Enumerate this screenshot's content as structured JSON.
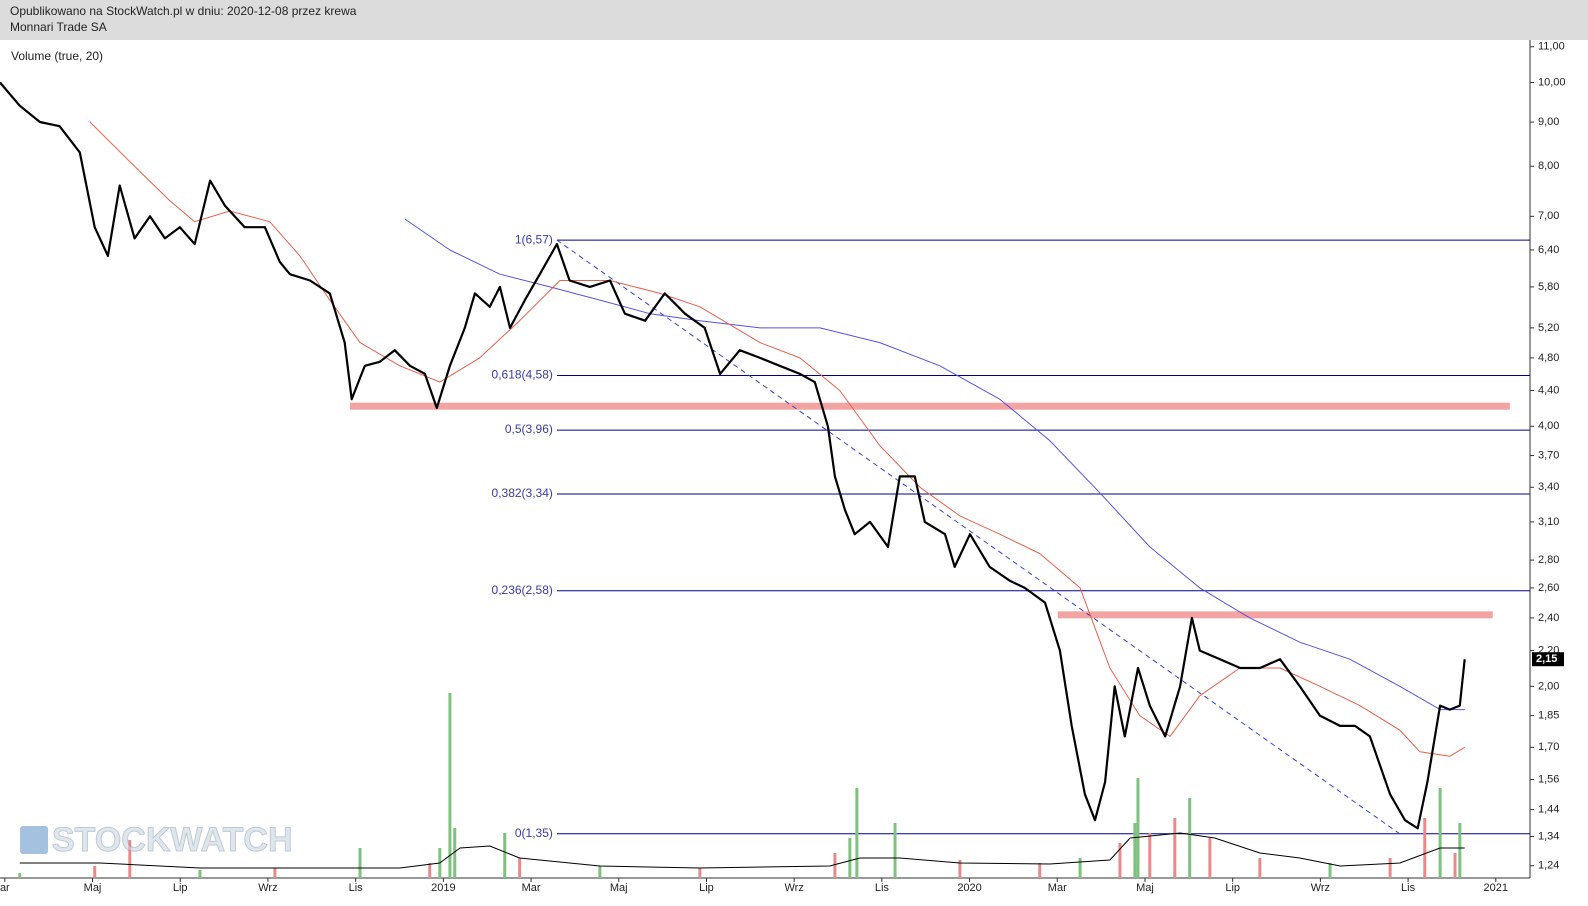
{
  "header": {
    "published": "Opublikowano na StockWatch.pl w dniu: 2020-12-08 przez krewa",
    "company": "Monnari Trade SA"
  },
  "watermark": "STOCKWATCH",
  "chart_data": {
    "type": "line",
    "subtitle": "Volume (true, 20)",
    "log_y": true,
    "xlim": [
      -0.11,
      34.78
    ],
    "ylim": [
      1.2,
      11.2
    ],
    "y2lim": [
      0,
      200
    ],
    "xticks": [
      {
        "value": 0,
        "label": "ar"
      },
      {
        "value": 2,
        "label": "Maj"
      },
      {
        "value": 4,
        "label": "Lip"
      },
      {
        "value": 6,
        "label": "Wrz"
      },
      {
        "value": 8,
        "label": "Lis"
      },
      {
        "value": 10,
        "label": "2019"
      },
      {
        "value": 12,
        "label": "Mar"
      },
      {
        "value": 14,
        "label": "Maj"
      },
      {
        "value": 16,
        "label": "Lip"
      },
      {
        "value": 18,
        "label": "Wrz"
      },
      {
        "value": 20,
        "label": "Lis"
      },
      {
        "value": 22,
        "label": "2020"
      },
      {
        "value": 24,
        "label": "Mar"
      },
      {
        "value": 26,
        "label": "Maj"
      },
      {
        "value": 28,
        "label": "Lip"
      },
      {
        "value": 30,
        "label": "Wrz"
      },
      {
        "value": 32,
        "label": "Lis"
      },
      {
        "value": 34,
        "label": "2021"
      }
    ],
    "yticks": [
      {
        "value": 11,
        "label": "11,00"
      },
      {
        "value": 10,
        "label": "10,00"
      },
      {
        "value": 9,
        "label": "9,00"
      },
      {
        "value": 8,
        "label": "8,00"
      },
      {
        "value": 7,
        "label": "7,00"
      },
      {
        "value": 6.4,
        "label": "6,40"
      },
      {
        "value": 5.8,
        "label": "5,80"
      },
      {
        "value": 5.2,
        "label": "5,20"
      },
      {
        "value": 4.8,
        "label": "4,80"
      },
      {
        "value": 4.4,
        "label": "4,40"
      },
      {
        "value": 4,
        "label": "4,00"
      },
      {
        "value": 3.7,
        "label": "3,70"
      },
      {
        "value": 3.4,
        "label": "3,40"
      },
      {
        "value": 3.1,
        "label": "3,10"
      },
      {
        "value": 2.8,
        "label": "2,80"
      },
      {
        "value": 2.6,
        "label": "2,60"
      },
      {
        "value": 2.4,
        "label": "2,40"
      },
      {
        "value": 2.2,
        "label": "2,20"
      },
      {
        "value": 2,
        "label": "2,00"
      },
      {
        "value": 1.85,
        "label": "1,85"
      },
      {
        "value": 1.7,
        "label": "1,70"
      },
      {
        "value": 1.56,
        "label": "1,56"
      },
      {
        "value": 1.44,
        "label": "1,44"
      },
      {
        "value": 1.34,
        "label": "1,34"
      },
      {
        "value": 1.24,
        "label": "1,24"
      }
    ],
    "series": [
      {
        "type": "bar",
        "axis": "y2",
        "x": [
          0.34,
          2.05,
          2.85,
          4.45,
          6.16,
          8.1,
          9.69,
          9.92,
          10.15,
          10.26,
          11.4,
          11.74,
          13.57,
          15.85,
          18.93,
          19.27,
          19.43,
          20.3,
          21.78,
          23.6,
          24.52,
          25.43,
          25.77,
          25.84,
          26.11,
          26.68,
          27.02,
          27.48,
          28.62,
          30.22,
          31.59,
          32.38,
          32.73,
          33.07,
          33.18
        ],
        "values": [
          5,
          12,
          38,
          8,
          10,
          30,
          15,
          30,
          185,
          50,
          45,
          20,
          12,
          10,
          25,
          40,
          90,
          55,
          18,
          15,
          20,
          35,
          55,
          100,
          45,
          60,
          80,
          40,
          20,
          15,
          20,
          60,
          90,
          25,
          55
        ],
        "colors": [
          "#7fc27f",
          "#e88a8a",
          "#e88a8a",
          "#7fc27f",
          "#e88a8a",
          "#7fc27f",
          "#e88a8a",
          "#7fc27f",
          "#7fc27f",
          "#7fc27f",
          "#7fc27f",
          "#e88a8a",
          "#7fc27f",
          "#e88a8a",
          "#e88a8a",
          "#7fc27f",
          "#7fc27f",
          "#7fc27f",
          "#e88a8a",
          "#e88a8a",
          "#7fc27f",
          "#e88a8a",
          "#7fc27f",
          "#7fc27f",
          "#e88a8a",
          "#e88a8a",
          "#7fc27f",
          "#e88a8a",
          "#e88a8a",
          "#7fc27f",
          "#e88a8a",
          "#e88a8a",
          "#7fc27f",
          "#e88a8a",
          "#7fc27f"
        ]
      },
      {
        "type": "line",
        "axis": "y2",
        "color": "#000000",
        "width": 1,
        "x": [
          0.34,
          2.17,
          4.45,
          6.73,
          9.01,
          9.92,
          10.38,
          11.06,
          11.74,
          13.57,
          15.85,
          18.81,
          19.5,
          20.41,
          21.78,
          23.83,
          25.2,
          25.66,
          26.8,
          27.59,
          28.62,
          29.53,
          30.45,
          31.81,
          32.73,
          33.29
        ],
        "values": [
          15,
          15,
          10,
          10,
          10,
          15,
          30,
          32,
          20,
          12,
          10,
          12,
          20,
          20,
          15,
          14,
          18,
          40,
          45,
          40,
          25,
          20,
          12,
          15,
          30,
          30
        ]
      },
      {
        "type": "line",
        "color": "#5555dd",
        "width": 1,
        "x": [
          9.12,
          10.15,
          11.29,
          12.43,
          13.57,
          14.71,
          15.85,
          17.22,
          18.59,
          19.95,
          21.32,
          22.69,
          23.83,
          24.97,
          26.11,
          27.25,
          28.39,
          29.53,
          30.67,
          31.81,
          32.73,
          33.29
        ],
        "values": [
          6.95,
          6.4,
          6.0,
          5.8,
          5.6,
          5.4,
          5.3,
          5.2,
          5.2,
          5.0,
          4.7,
          4.3,
          3.85,
          3.35,
          2.9,
          2.6,
          2.4,
          2.25,
          2.15,
          2.0,
          1.88,
          1.88
        ]
      },
      {
        "type": "line",
        "color": "#e8604c",
        "width": 1,
        "x": [
          1.94,
          2.85,
          3.76,
          4.33,
          5.13,
          6.04,
          6.73,
          7.41,
          8.1,
          9.01,
          9.92,
          10.83,
          11.74,
          12.66,
          13.8,
          14.94,
          15.85,
          17.22,
          18.13,
          19.04,
          19.95,
          20.87,
          21.78,
          22.69,
          23.6,
          24.52,
          25.2,
          25.88,
          26.57,
          27.25,
          28.16,
          29.08,
          29.99,
          30.9,
          31.81,
          32.27,
          32.95,
          33.29
        ],
        "values": [
          9.0,
          8.1,
          7.3,
          6.9,
          7.1,
          6.9,
          6.3,
          5.6,
          5.0,
          4.7,
          4.5,
          4.8,
          5.3,
          5.9,
          5.9,
          5.7,
          5.5,
          5.0,
          4.8,
          4.4,
          3.8,
          3.4,
          3.15,
          3.0,
          2.85,
          2.6,
          2.1,
          1.85,
          1.75,
          1.95,
          2.1,
          2.1,
          2.0,
          1.9,
          1.78,
          1.68,
          1.66,
          1.7
        ]
      },
      {
        "type": "line",
        "color": "#000000",
        "width": 2.2,
        "x": [
          -0.11,
          0.34,
          0.8,
          1.25,
          1.71,
          2.05,
          2.35,
          2.62,
          2.96,
          3.31,
          3.65,
          3.99,
          4.33,
          4.68,
          5.02,
          5.47,
          5.93,
          6.27,
          6.5,
          6.96,
          7.41,
          7.75,
          7.91,
          8.21,
          8.55,
          8.89,
          9.24,
          9.58,
          9.85,
          10.15,
          10.49,
          10.72,
          11.06,
          11.29,
          11.52,
          11.86,
          12.2,
          12.59,
          12.88,
          13.34,
          13.8,
          14.14,
          14.6,
          15.05,
          15.51,
          15.96,
          16.31,
          16.76,
          17.22,
          17.67,
          18.13,
          18.47,
          18.77,
          18.93,
          19.16,
          19.38,
          19.73,
          20.14,
          20.41,
          20.75,
          20.98,
          21.44,
          21.66,
          22.01,
          22.46,
          22.92,
          23.26,
          23.72,
          24.06,
          24.33,
          24.63,
          24.86,
          25.09,
          25.31,
          25.54,
          25.84,
          26.11,
          26.46,
          26.8,
          27.07,
          27.25,
          27.71,
          28.17,
          28.62,
          29.08,
          29.53,
          29.99,
          30.45,
          30.79,
          31.13,
          31.59,
          31.93,
          32.22,
          32.44,
          32.73,
          32.95,
          33.18,
          33.29
        ],
        "values": [
          10.0,
          9.4,
          9.0,
          8.9,
          8.3,
          6.8,
          6.3,
          7.6,
          6.6,
          7.0,
          6.6,
          6.8,
          6.5,
          7.7,
          7.2,
          6.8,
          6.8,
          6.2,
          6.0,
          5.9,
          5.7,
          5.0,
          4.3,
          4.7,
          4.75,
          4.9,
          4.7,
          4.6,
          4.2,
          4.7,
          5.2,
          5.7,
          5.5,
          5.8,
          5.2,
          5.6,
          6.0,
          6.5,
          5.9,
          5.8,
          5.9,
          5.4,
          5.3,
          5.7,
          5.4,
          5.2,
          4.6,
          4.9,
          4.8,
          4.7,
          4.6,
          4.5,
          4.0,
          3.5,
          3.2,
          3.0,
          3.1,
          2.9,
          3.5,
          3.5,
          3.1,
          3.0,
          2.75,
          3.0,
          2.75,
          2.65,
          2.6,
          2.5,
          2.2,
          1.8,
          1.5,
          1.4,
          1.55,
          2.0,
          1.75,
          2.1,
          1.9,
          1.75,
          2.0,
          2.4,
          2.2,
          2.15,
          2.1,
          2.1,
          2.15,
          2.0,
          1.85,
          1.8,
          1.8,
          1.75,
          1.5,
          1.4,
          1.37,
          1.55,
          1.9,
          1.88,
          1.9,
          2.15
        ]
      }
    ],
    "fib_levels": {
      "start_x": 12.59,
      "end_x": 34.78,
      "color": "#000088",
      "label_color": "#3a3aaa",
      "levels": [
        {
          "value": 6.57,
          "label": "1(6,57)"
        },
        {
          "value": 4.58,
          "label": "0,618(4,58)"
        },
        {
          "value": 3.96,
          "label": "0,5(3,96)"
        },
        {
          "value": 3.34,
          "label": "0,382(3,34)"
        },
        {
          "value": 2.58,
          "label": "0,236(2,58)"
        },
        {
          "value": 1.35,
          "label": "0(1,35)"
        }
      ]
    },
    "bands": [
      {
        "value": 4.22,
        "x": [
          7.87,
          34.32
        ],
        "color": "#f4a3a3"
      },
      {
        "value": 2.42,
        "x": [
          24.01,
          33.93
        ],
        "color": "#f4a3a3"
      }
    ],
    "trendline": {
      "x": [
        12.59,
        31.81
      ],
      "values": [
        6.57,
        1.35
      ],
      "color": "#3344cc"
    },
    "last_price": {
      "value": 2.15,
      "label": "2,15"
    }
  }
}
